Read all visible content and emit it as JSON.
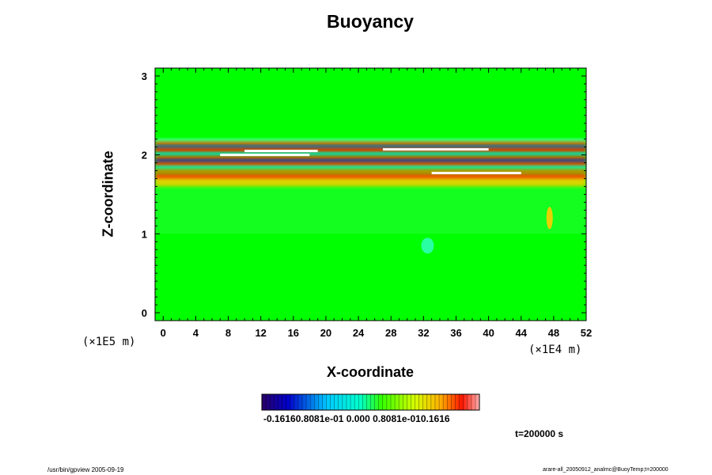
{
  "chart_data": {
    "type": "heatmap",
    "title": "Buoyancy",
    "xlabel": "X-coordinate",
    "ylabel": "Z-coordinate",
    "x_units": "(×1E4 m)",
    "y_units": "(×1E5 m)",
    "xlim": [
      -1,
      52
    ],
    "ylim": [
      -0.1,
      3.1
    ],
    "x_ticks": [
      0,
      4,
      8,
      12,
      16,
      20,
      24,
      28,
      32,
      36,
      40,
      44,
      48,
      52
    ],
    "y_ticks": [
      0,
      1,
      2,
      3
    ],
    "colorbar": {
      "min": -0.1616,
      "max": 0.1616,
      "tick_labels_text": "-0.16160.8081e-01 0.000 0.8081e-010.1616"
    },
    "regions": [
      {
        "z": [
          -0.1,
          1.6
        ],
        "value": 0.0
      },
      {
        "z": [
          1.6,
          1.75
        ],
        "value": 0.09
      },
      {
        "z": [
          1.75,
          2.2
        ],
        "value": "alternating ±0.16"
      },
      {
        "z": [
          2.2,
          3.1
        ],
        "value": 0.0
      }
    ],
    "colors": {
      "background": "#00ff00",
      "positive": "#ff1a00",
      "negative": "#0000ff"
    }
  },
  "time_label": "t=200000 s",
  "footer_left": "/usr/bin/gpview 2005-09-19",
  "footer_right": "arare-all_20050912_analmc@BuoyTemp;t=200000"
}
